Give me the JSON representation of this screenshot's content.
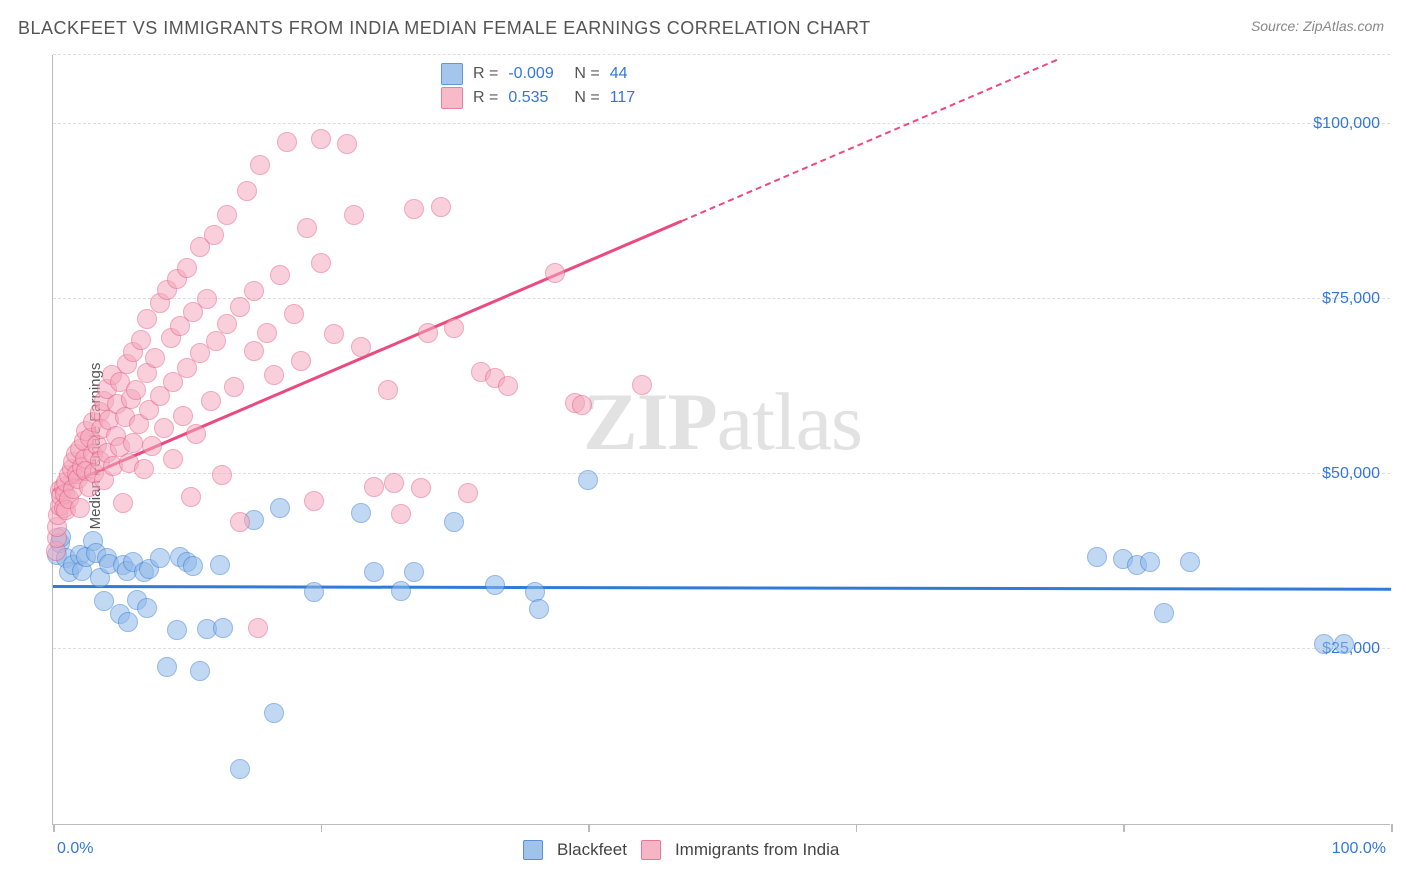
{
  "title": "BLACKFEET VS IMMIGRANTS FROM INDIA MEDIAN FEMALE EARNINGS CORRELATION CHART",
  "source": "Source: ZipAtlas.com",
  "ylabel": "Median Female Earnings",
  "watermark": {
    "bold": "ZIP",
    "rest": "atlas"
  },
  "chart": {
    "type": "scatter",
    "background_color": "#ffffff",
    "grid_color": "#dddddd",
    "axis_color": "#bbbbbb",
    "text_color": "#555555",
    "value_color": "#3377dd",
    "xlim": [
      0,
      100
    ],
    "ylim": [
      0,
      110000
    ],
    "xticks": [
      {
        "pos": 0,
        "label": "0.0%"
      },
      {
        "pos": 20
      },
      {
        "pos": 40
      },
      {
        "pos": 60
      },
      {
        "pos": 80
      },
      {
        "pos": 100,
        "label": "100.0%"
      }
    ],
    "yticks": [
      {
        "pos": 25000,
        "label": "$25,000"
      },
      {
        "pos": 50000,
        "label": "$50,000"
      },
      {
        "pos": 75000,
        "label": "$75,000"
      },
      {
        "pos": 100000,
        "label": "$100,000"
      }
    ],
    "marker_radius": 10,
    "marker_opacity": 0.55,
    "tick_fontsize": 16,
    "label_fontsize": 15,
    "title_fontsize": 18
  },
  "series": [
    {
      "name": "Blackfeet",
      "fill_color": "#8fb9e8",
      "stroke_color": "#3b7dd8",
      "trend_color": "#2f7bd6",
      "r": "-0.009",
      "n": "44",
      "trend": {
        "x1": 0,
        "y1": 33800,
        "x2": 100,
        "y2": 33400
      },
      "points": [
        [
          0.3,
          38500
        ],
        [
          0.5,
          40200
        ],
        [
          0.6,
          41000
        ],
        [
          1,
          38000
        ],
        [
          1.2,
          36000
        ],
        [
          1.5,
          37000
        ],
        [
          2,
          38500
        ],
        [
          2.2,
          36200
        ],
        [
          2.5,
          38200
        ],
        [
          3,
          40500
        ],
        [
          3.2,
          38700
        ],
        [
          3.5,
          35200
        ],
        [
          3.8,
          31900
        ],
        [
          4,
          38000
        ],
        [
          4.2,
          37200
        ],
        [
          5,
          30000
        ],
        [
          5.2,
          37000
        ],
        [
          5.5,
          36200
        ],
        [
          5.6,
          28900
        ],
        [
          6,
          37500
        ],
        [
          6.3,
          32000
        ],
        [
          6.8,
          36000
        ],
        [
          7,
          30900
        ],
        [
          7.2,
          36500
        ],
        [
          8,
          38000
        ],
        [
          8.5,
          22500
        ],
        [
          9.3,
          27700
        ],
        [
          9.5,
          38200
        ],
        [
          10,
          37500
        ],
        [
          10.5,
          36800
        ],
        [
          11,
          21800
        ],
        [
          11.5,
          27800
        ],
        [
          12.5,
          37000
        ],
        [
          12.7,
          28000
        ],
        [
          14,
          7900
        ],
        [
          15,
          43500
        ],
        [
          16.5,
          15800
        ],
        [
          17,
          45200
        ],
        [
          19.5,
          33200
        ],
        [
          23,
          44500
        ],
        [
          24,
          36000
        ],
        [
          26,
          33300
        ],
        [
          27,
          36000
        ],
        [
          30,
          43200
        ],
        [
          33,
          34200
        ],
        [
          36,
          33200
        ],
        [
          36.3,
          30700
        ],
        [
          40,
          49200
        ],
        [
          78,
          38200
        ],
        [
          80,
          37800
        ],
        [
          81,
          37000
        ],
        [
          82,
          37500
        ],
        [
          83,
          30200
        ],
        [
          85,
          37500
        ],
        [
          95,
          25700
        ],
        [
          96.5,
          25700
        ]
      ]
    },
    {
      "name": "Immigrants from India",
      "fill_color": "#f4a9bc",
      "stroke_color": "#e75e89",
      "trend_color": "#ea4a80",
      "r": "0.535",
      "n": "117",
      "trend": {
        "x1": 0,
        "y1": 47500,
        "x2": 47,
        "y2": 86000
      },
      "trend_extrap": {
        "x1": 47,
        "y1": 86000,
        "x2": 75,
        "y2": 109000
      },
      "points": [
        [
          0.2,
          39000
        ],
        [
          0.3,
          40900
        ],
        [
          0.3,
          42500
        ],
        [
          0.4,
          44200
        ],
        [
          0.5,
          45500
        ],
        [
          0.5,
          47700
        ],
        [
          0.6,
          46900
        ],
        [
          0.8,
          45200
        ],
        [
          0.8,
          48100
        ],
        [
          0.9,
          47200
        ],
        [
          1,
          48900
        ],
        [
          1,
          44800
        ],
        [
          1.2,
          49800
        ],
        [
          1.2,
          46500
        ],
        [
          1.4,
          50700
        ],
        [
          1.5,
          51700
        ],
        [
          1.5,
          47900
        ],
        [
          1.7,
          52800
        ],
        [
          1.8,
          50000
        ],
        [
          1.9,
          49300
        ],
        [
          2,
          53600
        ],
        [
          2,
          45200
        ],
        [
          2.2,
          51000
        ],
        [
          2.3,
          54700
        ],
        [
          2.4,
          52200
        ],
        [
          2.5,
          56200
        ],
        [
          2.5,
          50500
        ],
        [
          2.7,
          48200
        ],
        [
          2.8,
          55100
        ],
        [
          3,
          57400
        ],
        [
          3,
          52800
        ],
        [
          3.1,
          50100
        ],
        [
          3.3,
          54200
        ],
        [
          3.5,
          58800
        ],
        [
          3.5,
          51900
        ],
        [
          3.6,
          56400
        ],
        [
          3.8,
          60500
        ],
        [
          3.8,
          49200
        ],
        [
          4,
          53000
        ],
        [
          4,
          62200
        ],
        [
          4.2,
          57700
        ],
        [
          4.4,
          64200
        ],
        [
          4.5,
          51200
        ],
        [
          4.7,
          55500
        ],
        [
          4.8,
          60000
        ],
        [
          5,
          63200
        ],
        [
          5,
          53900
        ],
        [
          5.2,
          45800
        ],
        [
          5.4,
          58200
        ],
        [
          5.5,
          65700
        ],
        [
          5.7,
          51600
        ],
        [
          5.8,
          60700
        ],
        [
          6,
          67400
        ],
        [
          6,
          54400
        ],
        [
          6.2,
          62000
        ],
        [
          6.4,
          57200
        ],
        [
          6.6,
          69200
        ],
        [
          6.8,
          50700
        ],
        [
          7,
          64500
        ],
        [
          7,
          72100
        ],
        [
          7.2,
          59200
        ],
        [
          7.4,
          54000
        ],
        [
          7.6,
          66600
        ],
        [
          8,
          74500
        ],
        [
          8,
          61200
        ],
        [
          8.3,
          56600
        ],
        [
          8.5,
          76300
        ],
        [
          8.8,
          69500
        ],
        [
          9,
          63200
        ],
        [
          9,
          52200
        ],
        [
          9.3,
          77800
        ],
        [
          9.5,
          71200
        ],
        [
          9.7,
          58300
        ],
        [
          10,
          65100
        ],
        [
          10,
          79500
        ],
        [
          10.3,
          46700
        ],
        [
          10.5,
          73200
        ],
        [
          10.7,
          55700
        ],
        [
          11,
          82500
        ],
        [
          11,
          67300
        ],
        [
          11.5,
          75000
        ],
        [
          11.8,
          60500
        ],
        [
          12,
          84200
        ],
        [
          12.2,
          69000
        ],
        [
          12.6,
          49800
        ],
        [
          13,
          71500
        ],
        [
          13,
          87000
        ],
        [
          13.5,
          62400
        ],
        [
          14,
          73900
        ],
        [
          14,
          43200
        ],
        [
          14.5,
          90500
        ],
        [
          15,
          67600
        ],
        [
          15,
          76200
        ],
        [
          15.5,
          94200
        ],
        [
          16,
          70200
        ],
        [
          16.5,
          64200
        ],
        [
          17,
          78500
        ],
        [
          17.5,
          97500
        ],
        [
          18,
          72800
        ],
        [
          18.5,
          66100
        ],
        [
          19,
          85200
        ],
        [
          19.5,
          46200
        ],
        [
          20,
          80200
        ],
        [
          20,
          97800
        ],
        [
          21,
          70000
        ],
        [
          22,
          97200
        ],
        [
          22.5,
          87000
        ],
        [
          23,
          68200
        ],
        [
          24,
          48200
        ],
        [
          25,
          62000
        ],
        [
          25.5,
          48700
        ],
        [
          26,
          44300
        ],
        [
          27,
          87800
        ],
        [
          27.5,
          48000
        ],
        [
          28,
          70200
        ],
        [
          29,
          88200
        ],
        [
          30,
          70900
        ],
        [
          31,
          47300
        ],
        [
          32,
          64600
        ],
        [
          33,
          63700
        ],
        [
          34,
          62600
        ],
        [
          37.5,
          78700
        ],
        [
          39,
          60200
        ],
        [
          39.5,
          59800
        ],
        [
          44,
          62700
        ],
        [
          15.3,
          28000
        ]
      ]
    }
  ],
  "legend_top": {
    "r_label": "R =",
    "n_label": "N ="
  },
  "legend_bottom": [
    {
      "label": "Blackfeet",
      "series": 0
    },
    {
      "label": "Immigrants from India",
      "series": 1
    }
  ]
}
